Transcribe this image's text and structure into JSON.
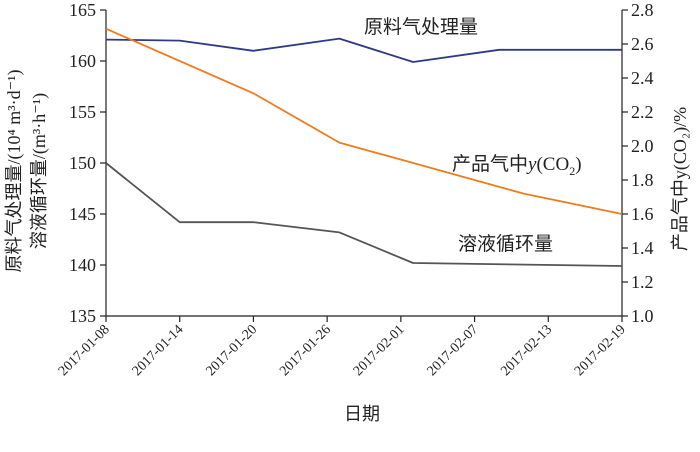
{
  "chart_data": {
    "type": "line",
    "xlabel": "日期",
    "x_ticks": [
      "2017-01-08",
      "2017-01-14",
      "2017-01-20",
      "2017-01-26",
      "2017-02-01",
      "2017-02-07",
      "2017-02-13",
      "2017-02-19"
    ],
    "x_range": [
      "2017-01-08",
      "2017-02-19"
    ],
    "y_left": {
      "label_line1": "原料气处理量/(10⁴ m³·d⁻¹)",
      "label_line2": "溶液循环量/(m³·h⁻¹)",
      "range": [
        135,
        165
      ],
      "ticks": [
        135,
        140,
        145,
        150,
        155,
        160,
        165
      ]
    },
    "y_right": {
      "label": "产品气中y(CO₂)/%",
      "range": [
        1.0,
        2.8
      ],
      "ticks": [
        1.0,
        1.2,
        1.4,
        1.6,
        1.8,
        2.0,
        2.2,
        2.4,
        2.6,
        2.8
      ]
    },
    "grid": false,
    "series": [
      {
        "name": "原料气处理量",
        "axis": "left",
        "color": "#2e3a87",
        "x": [
          "2017-01-08",
          "2017-01-14",
          "2017-01-20",
          "2017-01-27",
          "2017-02-02",
          "2017-02-09",
          "2017-02-19"
        ],
        "values": [
          162.1,
          162.0,
          161.0,
          162.2,
          159.9,
          161.1,
          161.1
        ]
      },
      {
        "name": "产品气中y(CO₂)",
        "axis": "right",
        "color": "#f07b1e",
        "x": [
          "2017-01-08",
          "2017-01-20",
          "2017-01-27",
          "2017-02-11",
          "2017-02-19"
        ],
        "values": [
          2.69,
          2.31,
          2.02,
          1.72,
          1.6
        ]
      },
      {
        "name": "溶液循环量",
        "axis": "left",
        "color": "#555555",
        "x": [
          "2017-01-08",
          "2017-01-14",
          "2017-01-20",
          "2017-01-27",
          "2017-02-02",
          "2017-02-19"
        ],
        "values": [
          150.0,
          144.2,
          144.2,
          143.2,
          140.2,
          139.9
        ]
      }
    ],
    "annotations": [
      {
        "text": "原料气处理量",
        "series": 0
      },
      {
        "text_prefix": "产品气中",
        "text_var": "y",
        "text_open": "(CO",
        "text_sub": "2",
        "text_close": ")",
        "series": 1
      },
      {
        "text": "溶液循环量",
        "series": 2
      }
    ]
  }
}
